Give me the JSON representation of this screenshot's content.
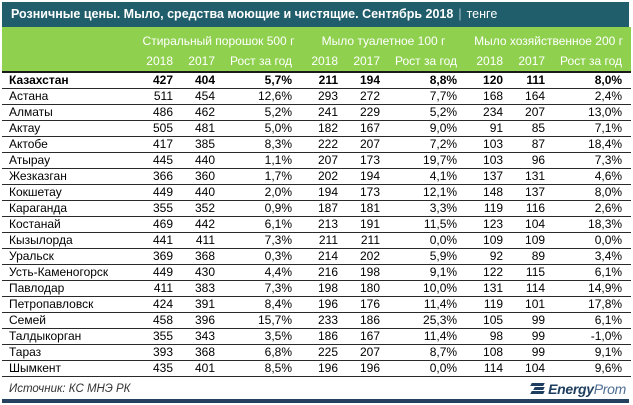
{
  "header": {
    "title": "Розничные цены. Мыло, средства моющие и чистящие. Сентябрь 2018",
    "separator": "|",
    "unit": "тенге"
  },
  "footer": {
    "source": "Источник: КС МНЭ РК",
    "logo_bold": "Energy",
    "logo_light": "Prom"
  },
  "colors": {
    "topbar": "#205e6b",
    "header_green": "#8fd14f",
    "logo_navy": "#1d3e5e",
    "bottom_bar": "#24425f"
  },
  "chart_data": {
    "type": "table",
    "title": "Розничные цены. Мыло, средства моющие и чистящие. Сентябрь 2018",
    "unit": "тенге",
    "column_groups": [
      "Стиральный порошок 500 г",
      "Мыло туалетное 100 г",
      "Мыло хозяйственное 200 г"
    ],
    "sub_columns": [
      "2018",
      "2017",
      "Рост за год"
    ],
    "rows": [
      {
        "region": "Казахстан",
        "bold": true,
        "values": [
          "427",
          "404",
          "5,7%",
          "211",
          "194",
          "8,8%",
          "120",
          "111",
          "8,0%"
        ]
      },
      {
        "region": "Астана",
        "bold": false,
        "values": [
          "511",
          "454",
          "12,6%",
          "293",
          "272",
          "7,7%",
          "168",
          "164",
          "2,4%"
        ]
      },
      {
        "region": "Алматы",
        "bold": false,
        "values": [
          "486",
          "462",
          "5,2%",
          "241",
          "229",
          "5,2%",
          "234",
          "207",
          "13,0%"
        ]
      },
      {
        "region": "Актау",
        "bold": false,
        "values": [
          "505",
          "481",
          "5,0%",
          "182",
          "167",
          "9,0%",
          "91",
          "85",
          "7,1%"
        ]
      },
      {
        "region": "Актобе",
        "bold": false,
        "values": [
          "417",
          "385",
          "8,3%",
          "222",
          "207",
          "7,2%",
          "103",
          "87",
          "18,4%"
        ]
      },
      {
        "region": "Атырау",
        "bold": false,
        "values": [
          "445",
          "440",
          "1,1%",
          "207",
          "173",
          "19,7%",
          "103",
          "96",
          "7,3%"
        ]
      },
      {
        "region": "Жезказган",
        "bold": false,
        "values": [
          "366",
          "360",
          "1,7%",
          "202",
          "194",
          "4,1%",
          "137",
          "131",
          "4,6%"
        ]
      },
      {
        "region": "Кокшетау",
        "bold": false,
        "values": [
          "449",
          "440",
          "2,0%",
          "194",
          "173",
          "12,1%",
          "148",
          "137",
          "8,0%"
        ]
      },
      {
        "region": "Караганда",
        "bold": false,
        "values": [
          "355",
          "352",
          "0,9%",
          "187",
          "181",
          "3,3%",
          "119",
          "116",
          "2,6%"
        ]
      },
      {
        "region": "Костанай",
        "bold": false,
        "values": [
          "469",
          "442",
          "6,1%",
          "213",
          "191",
          "11,5%",
          "123",
          "104",
          "18,3%"
        ]
      },
      {
        "region": "Кызылорда",
        "bold": false,
        "values": [
          "441",
          "411",
          "7,3%",
          "211",
          "211",
          "0,0%",
          "109",
          "109",
          "0,0%"
        ]
      },
      {
        "region": "Уральск",
        "bold": false,
        "values": [
          "369",
          "368",
          "0,3%",
          "214",
          "202",
          "5,9%",
          "92",
          "89",
          "3,4%"
        ]
      },
      {
        "region": "Усть-Каменогорск",
        "bold": false,
        "values": [
          "449",
          "430",
          "4,4%",
          "216",
          "198",
          "9,1%",
          "122",
          "115",
          "6,1%"
        ]
      },
      {
        "region": "Павлодар",
        "bold": false,
        "values": [
          "411",
          "383",
          "7,3%",
          "198",
          "180",
          "10,0%",
          "131",
          "114",
          "14,9%"
        ]
      },
      {
        "region": "Петропавловск",
        "bold": false,
        "values": [
          "424",
          "391",
          "8,4%",
          "196",
          "176",
          "11,4%",
          "119",
          "101",
          "17,8%"
        ]
      },
      {
        "region": "Семей",
        "bold": false,
        "values": [
          "458",
          "396",
          "15,7%",
          "233",
          "186",
          "25,3%",
          "105",
          "99",
          "6,1%"
        ]
      },
      {
        "region": "Талдыкорган",
        "bold": false,
        "values": [
          "355",
          "343",
          "3,5%",
          "186",
          "167",
          "11,4%",
          "98",
          "99",
          "-1,0%"
        ]
      },
      {
        "region": "Тараз",
        "bold": false,
        "values": [
          "393",
          "368",
          "6,8%",
          "225",
          "207",
          "8,7%",
          "108",
          "99",
          "9,1%"
        ]
      },
      {
        "region": "Шымкент",
        "bold": false,
        "values": [
          "435",
          "401",
          "8,5%",
          "196",
          "196",
          "0,0%",
          "114",
          "104",
          "9,6%"
        ]
      }
    ]
  }
}
